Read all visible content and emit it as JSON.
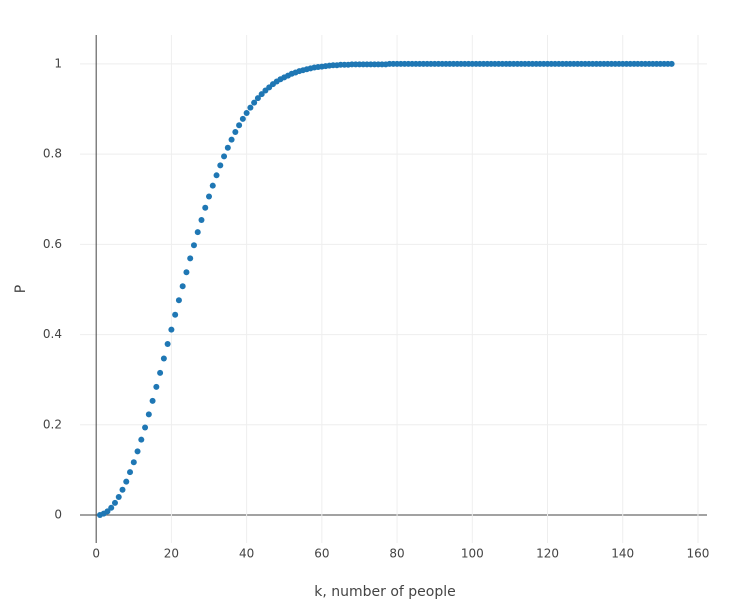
{
  "chart_data": {
    "type": "scatter",
    "xlabel": "k, number of people",
    "ylabel": "P",
    "series": [
      {
        "color": "#1f77b4",
        "x": [
          1,
          2,
          3,
          4,
          5,
          6,
          7,
          8,
          9,
          10,
          11,
          12,
          13,
          14,
          15,
          16,
          17,
          18,
          19,
          20,
          21,
          22,
          23,
          24,
          25,
          26,
          27,
          28,
          29,
          30,
          31,
          32,
          33,
          34,
          35,
          36,
          37,
          38,
          39,
          40,
          41,
          42,
          43,
          44,
          45,
          46,
          47,
          48,
          49,
          50,
          51,
          52,
          53,
          54,
          55,
          56,
          57,
          58,
          59,
          60,
          61,
          62,
          63,
          64,
          65,
          66,
          67,
          68,
          69,
          70,
          71,
          72,
          73,
          74,
          75,
          76,
          77,
          78,
          79,
          80,
          81,
          82,
          83,
          84,
          85,
          86,
          87,
          88,
          89,
          90,
          91,
          92,
          93,
          94,
          95,
          96,
          97,
          98,
          99,
          100,
          101,
          102,
          103,
          104,
          105,
          106,
          107,
          108,
          109,
          110,
          111,
          112,
          113,
          114,
          115,
          116,
          117,
          118,
          119,
          120,
          121,
          122,
          123,
          124,
          125,
          126,
          127,
          128,
          129,
          130,
          131,
          132,
          133,
          134,
          135,
          136,
          137,
          138,
          139,
          140,
          141,
          142,
          143,
          144,
          145,
          146,
          147,
          148,
          149,
          150,
          151,
          152,
          153
        ],
        "values": [
          0,
          0.003,
          0.008,
          0.016,
          0.027,
          0.04,
          0.056,
          0.074,
          0.095,
          0.117,
          0.141,
          0.167,
          0.194,
          0.223,
          0.253,
          0.284,
          0.315,
          0.347,
          0.379,
          0.411,
          0.444,
          0.476,
          0.507,
          0.538,
          0.569,
          0.598,
          0.627,
          0.654,
          0.681,
          0.706,
          0.73,
          0.753,
          0.775,
          0.795,
          0.814,
          0.832,
          0.849,
          0.864,
          0.878,
          0.891,
          0.903,
          0.914,
          0.924,
          0.933,
          0.941,
          0.948,
          0.955,
          0.961,
          0.966,
          0.97,
          0.974,
          0.978,
          0.981,
          0.984,
          0.986,
          0.988,
          0.99,
          0.992,
          0.993,
          0.994,
          0.995,
          0.996,
          0.997,
          0.997,
          0.998,
          0.998,
          0.998,
          0.999,
          0.999,
          0.999,
          0.999,
          0.999,
          0.999,
          0.999,
          0.999,
          0.999,
          0.999,
          1,
          1,
          1,
          1,
          1,
          1,
          1,
          1,
          1,
          1,
          1,
          1,
          1,
          1,
          1,
          1,
          1,
          1,
          1,
          1,
          1,
          1,
          1,
          1,
          1,
          1,
          1,
          1,
          1,
          1,
          1,
          1,
          1,
          1,
          1,
          1,
          1,
          1,
          1,
          1,
          1,
          1,
          1,
          1,
          1,
          1,
          1,
          1,
          1,
          1,
          1,
          1,
          1,
          1,
          1,
          1,
          1,
          1,
          1,
          1,
          1,
          1,
          1,
          1,
          1,
          1,
          1,
          1,
          1,
          1,
          1,
          1,
          1,
          1,
          1,
          1
        ]
      }
    ],
    "xlim": [
      -4.3,
      162.4
    ],
    "ylim": [
      -0.062,
      1.064
    ],
    "xticks": [
      0,
      20,
      40,
      60,
      80,
      100,
      120,
      140,
      160
    ],
    "yticks": [
      0,
      0.2,
      0.4,
      0.6,
      0.8,
      1
    ],
    "grid": true
  }
}
